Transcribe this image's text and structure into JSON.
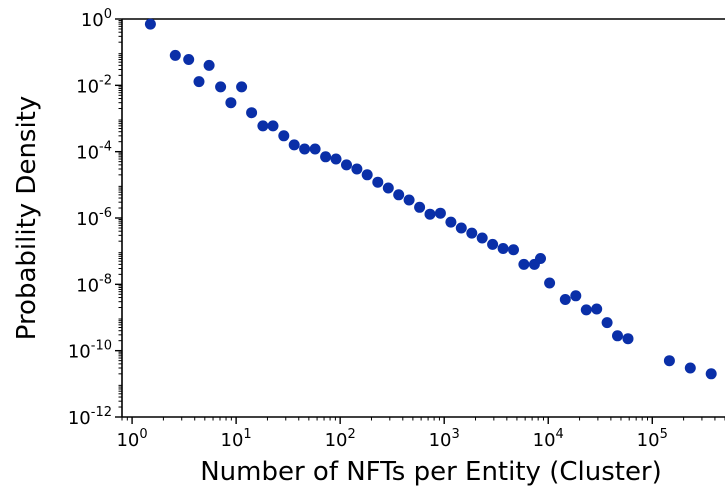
{
  "chart_data": {
    "type": "scatter",
    "title": "",
    "xlabel": "Number of NFTs per Entity (Cluster)",
    "ylabel": "Probability Density",
    "xscale": "log",
    "yscale": "log",
    "xlim": [
      0.8,
      500000
    ],
    "ylim": [
      1e-12,
      1
    ],
    "x_ticks": [
      {
        "base": "10",
        "exp": "0",
        "value": 1
      },
      {
        "base": "10",
        "exp": "1",
        "value": 10
      },
      {
        "base": "10",
        "exp": "2",
        "value": 100
      },
      {
        "base": "10",
        "exp": "3",
        "value": 1000
      },
      {
        "base": "10",
        "exp": "4",
        "value": 10000
      },
      {
        "base": "10",
        "exp": "5",
        "value": 100000
      }
    ],
    "y_ticks": [
      {
        "base": "10",
        "exp": "0",
        "value": 1
      },
      {
        "base": "10",
        "exp": "-2",
        "value": 0.01
      },
      {
        "base": "10",
        "exp": "-4",
        "value": 0.0001
      },
      {
        "base": "10",
        "exp": "-6",
        "value": 1e-06
      },
      {
        "base": "10",
        "exp": "-8",
        "value": 1e-08
      },
      {
        "base": "10",
        "exp": "-10",
        "value": 1e-10
      },
      {
        "base": "10",
        "exp": "-12",
        "value": 1e-12
      }
    ],
    "marker_color": "#0a2fa8",
    "grid": false,
    "series": [
      {
        "x": [
          1.5,
          2.6,
          3.5,
          4.4,
          5.5,
          7.1,
          8.9,
          11.3,
          14.1,
          18.1,
          22.6,
          28.7,
          36.2,
          45.5,
          57.4,
          72.5,
          91.2,
          115,
          145,
          182,
          230,
          290,
          365,
          460,
          580,
          730,
          920,
          1160,
          1460,
          1840,
          2320,
          2920,
          3680,
          4640,
          5840,
          7360,
          8420,
          10300,
          14600,
          18400,
          23200,
          29200,
          36800,
          46300,
          58400,
          146000,
          232000,
          368000
        ],
        "y": [
          0.7,
          0.08,
          0.06,
          0.013,
          0.04,
          0.009,
          0.003,
          0.009,
          0.0015,
          0.0006,
          0.0006,
          0.0003,
          0.00016,
          0.00012,
          0.00012,
          7e-05,
          6e-05,
          4e-05,
          3e-05,
          2e-05,
          1.2e-05,
          8e-06,
          5e-06,
          3.5e-06,
          2.1e-06,
          1.3e-06,
          1.4e-06,
          7.5e-07,
          5e-07,
          3.5e-07,
          2.5e-07,
          1.6e-07,
          1.2e-07,
          1.1e-07,
          4e-08,
          4e-08,
          6e-08,
          1.1e-08,
          3.5e-09,
          4.5e-09,
          1.7e-09,
          1.8e-09,
          7e-10,
          2.8e-10,
          2.3e-10,
          5e-11,
          3e-11,
          2e-11
        ]
      }
    ]
  }
}
